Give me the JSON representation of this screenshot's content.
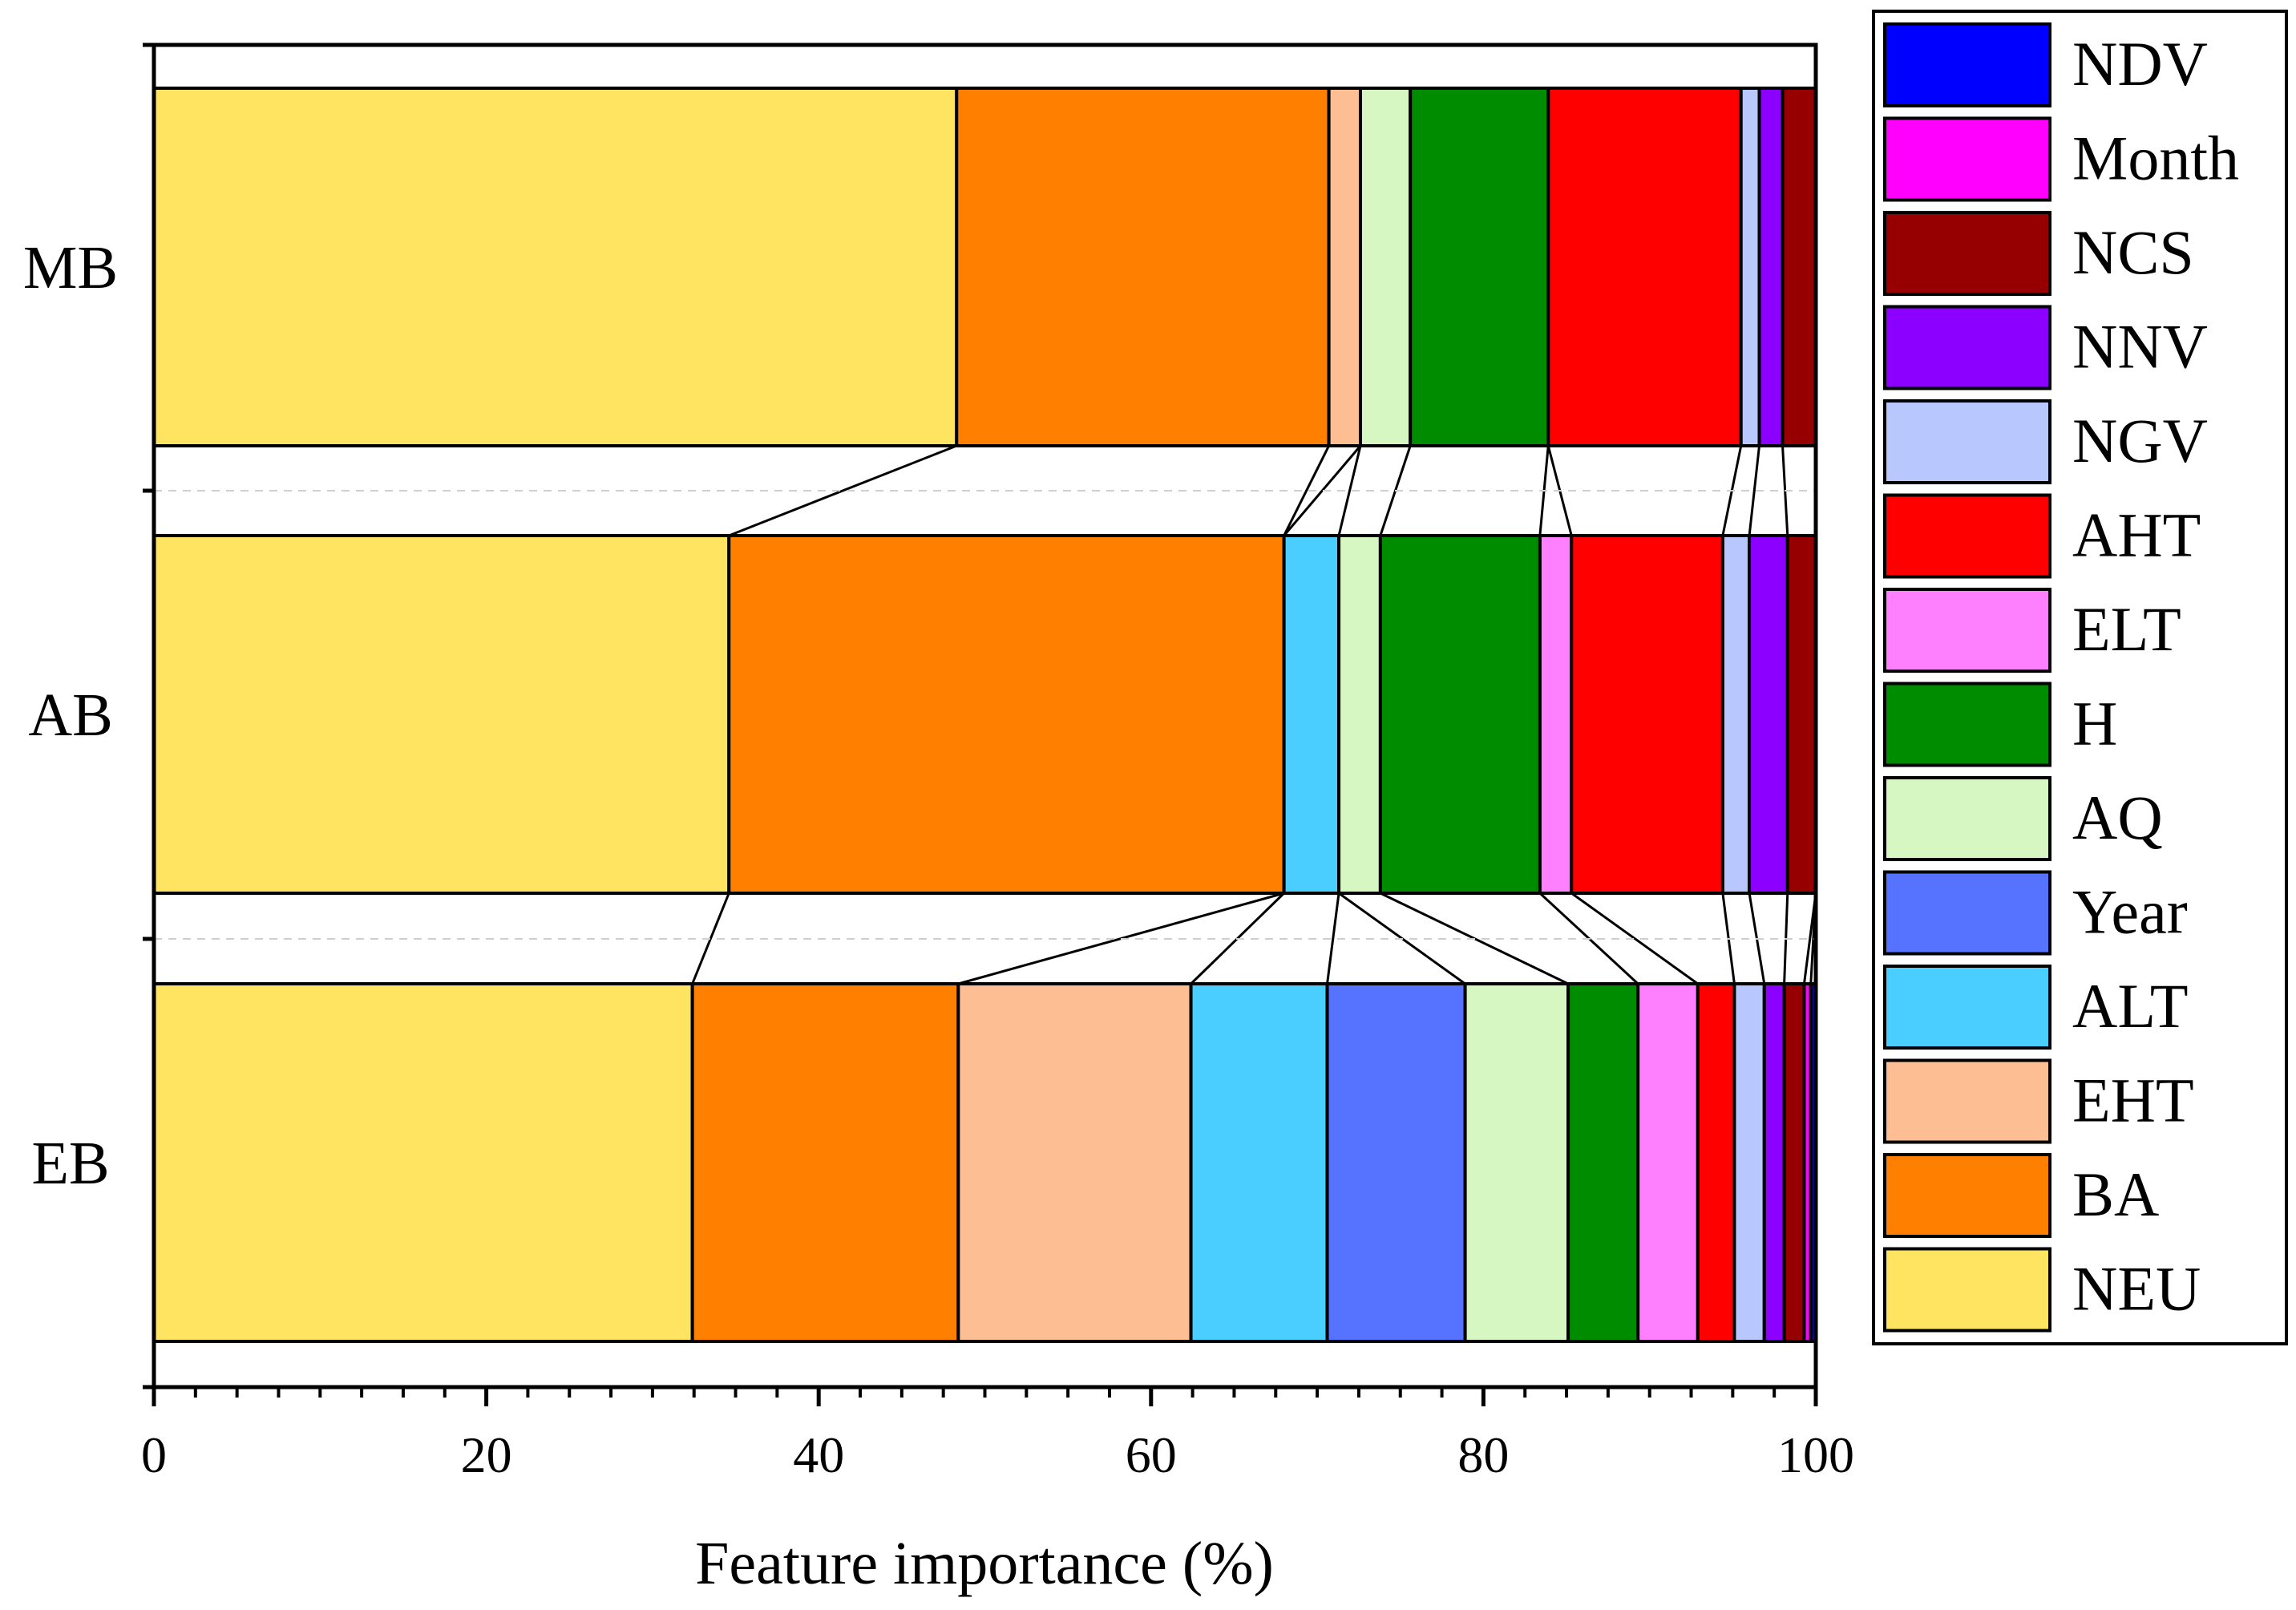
{
  "chart_data": {
    "type": "bar",
    "orientation": "horizontal",
    "stacked": true,
    "title": "",
    "xlabel": "Feature importance (%)",
    "ylabel": "",
    "xlim": [
      0,
      100
    ],
    "xticks": [
      0,
      20,
      40,
      60,
      80,
      100
    ],
    "categories": [
      "MB",
      "AB",
      "EB"
    ],
    "series": [
      {
        "name": "NEU",
        "color": "#FFE461",
        "values": [
          48.3,
          34.6,
          32.4
        ]
      },
      {
        "name": "BA",
        "color": "#FF8000",
        "values": [
          22.4,
          33.4,
          16.0
        ]
      },
      {
        "name": "EHT",
        "color": "#FCBE92",
        "values": [
          1.9,
          0.0,
          14.0
        ]
      },
      {
        "name": "ALT",
        "color": "#4ACDFF",
        "values": [
          0.0,
          3.3,
          8.2
        ]
      },
      {
        "name": "Year",
        "color": "#5673FF",
        "values": [
          0.0,
          0.0,
          8.3
        ]
      },
      {
        "name": "AQ",
        "color": "#D6F7C1",
        "values": [
          3.0,
          2.5,
          6.2
        ]
      },
      {
        "name": "H",
        "color": "#008C00",
        "values": [
          8.3,
          9.6,
          4.2
        ]
      },
      {
        "name": "ELT",
        "color": "#FF80FF",
        "values": [
          0.0,
          1.9,
          3.6
        ]
      },
      {
        "name": "AHT",
        "color": "#FF0000",
        "values": [
          11.6,
          9.1,
          2.2
        ]
      },
      {
        "name": "NGV",
        "color": "#B9C7FF",
        "values": [
          1.1,
          1.6,
          1.8
        ]
      },
      {
        "name": "NNV",
        "color": "#8C00FF",
        "values": [
          1.4,
          2.3,
          1.2
        ]
      },
      {
        "name": "NCS",
        "color": "#960000",
        "values": [
          2.0,
          1.7,
          1.2
        ]
      },
      {
        "name": "Month",
        "color": "#FF00FF",
        "values": [
          0.0,
          0.0,
          0.4
        ]
      },
      {
        "name": "NDV",
        "color": "#0000FF",
        "values": [
          0.0,
          0.0,
          0.3
        ]
      }
    ],
    "legend_order": [
      "NDV",
      "Month",
      "NCS",
      "NNV",
      "NGV",
      "AHT",
      "ELT",
      "H",
      "AQ",
      "Year",
      "ALT",
      "EHT",
      "BA",
      "NEU"
    ],
    "legend_position": "right",
    "grid": false
  }
}
